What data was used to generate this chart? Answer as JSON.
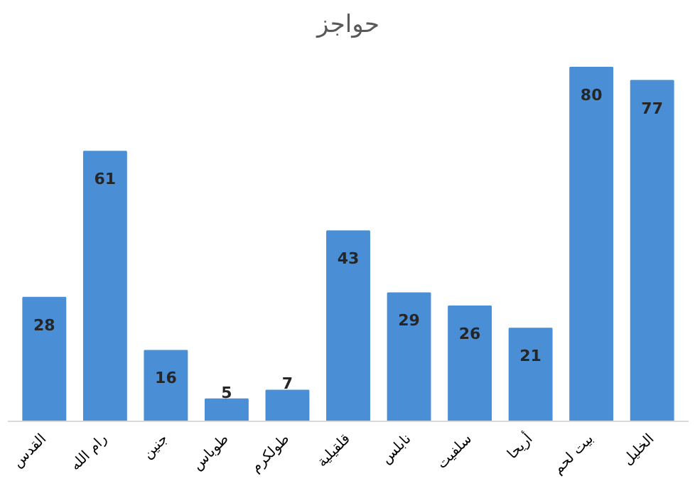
{
  "chart_data": {
    "type": "bar",
    "title": "حواجز",
    "categories": [
      "القدس",
      "رام الله",
      "جنين",
      "طوباس",
      "طولكرم",
      "قلقيلية",
      "نابلس",
      "سلفيت",
      "أريحا",
      "بيت لحم",
      "الخليل"
    ],
    "values": [
      28,
      61,
      16,
      5,
      7,
      43,
      29,
      26,
      21,
      80,
      77
    ],
    "color": "#4a8fd6",
    "data_labels": true
  }
}
